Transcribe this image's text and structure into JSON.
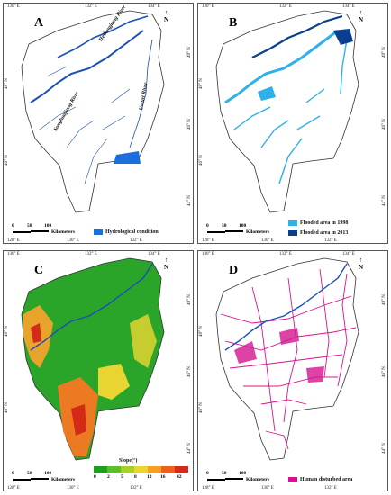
{
  "panels": [
    {
      "letter": "A",
      "top_ticks": [
        "130° E",
        "132° E",
        "134° E"
      ],
      "bottom_ticks": [
        "128° E",
        "130° E",
        "132° E"
      ],
      "left_ticks": [
        "48° N",
        "46° N"
      ],
      "right_ticks": [
        "48° N",
        "46° N",
        "44° N"
      ],
      "rivers": [
        "Heilongjiang River",
        "Songhuajiang River",
        "Ussuri River"
      ],
      "scale": {
        "zero": "0",
        "mid": "50",
        "max": "100",
        "unit": "Kilometers"
      },
      "legend": [
        {
          "label": "Hydrological condition",
          "color": "#1a6fe0"
        }
      ]
    },
    {
      "letter": "B",
      "top_ticks": [
        "130° E",
        "132° E",
        "134° E"
      ],
      "bottom_ticks": [
        "128° E",
        "130° E",
        "132° E"
      ],
      "left_ticks": [
        "48° N",
        "46° N"
      ],
      "right_ticks": [
        "48° N",
        "46° N",
        "44° N"
      ],
      "scale": {
        "zero": "0",
        "mid": "50",
        "max": "100",
        "unit": "Kilometers"
      },
      "legend": [
        {
          "label": "Flooded area in 1998",
          "color": "#2fb0e8"
        },
        {
          "label": "Flooded area in 2013",
          "color": "#0a3f8f"
        }
      ]
    },
    {
      "letter": "C",
      "top_ticks": [
        "130° E",
        "132° E",
        "134° E"
      ],
      "bottom_ticks": [
        "128° E",
        "130° E",
        "132° E"
      ],
      "left_ticks": [
        "48° N",
        "46° N"
      ],
      "right_ticks": [
        "48° N",
        "46° N",
        "44° N"
      ],
      "scale": {
        "zero": "0",
        "mid": "50",
        "max": "100",
        "unit": "Kilometers"
      },
      "slope_title": "Slope(°)",
      "slope_breaks": [
        "0",
        "2",
        "5",
        "8",
        "12",
        "16",
        "42"
      ],
      "slope_colors": [
        "#1f9e1f",
        "#5cbf2a",
        "#a6d12b",
        "#e8d531",
        "#f3a024",
        "#ec5f1c",
        "#d42a18"
      ]
    },
    {
      "letter": "D",
      "top_ticks": [
        "130° E",
        "132° E",
        "134° E"
      ],
      "bottom_ticks": [
        "128° E",
        "130° E",
        "132° E"
      ],
      "left_ticks": [
        "48° N",
        "46° N"
      ],
      "right_ticks": [
        "48° N",
        "46° N",
        "44° N"
      ],
      "scale": {
        "zero": "0",
        "mid": "50",
        "max": "100",
        "unit": "Kilometers"
      },
      "legend": [
        {
          "label": "Human disturbed area",
          "color": "#d4148f"
        }
      ]
    }
  ],
  "colors": {
    "river": "#1a4fb5",
    "boundary": "#333333",
    "landC": "#2aa52a"
  }
}
